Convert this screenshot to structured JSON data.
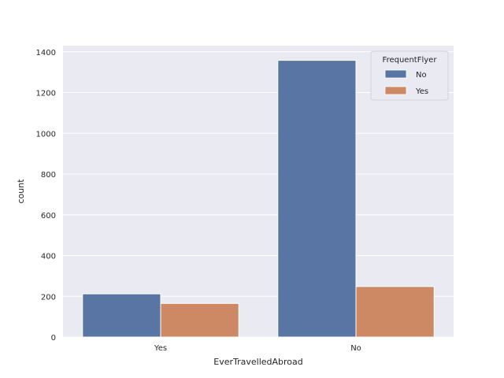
{
  "chart_data": {
    "type": "bar",
    "title": "",
    "xlabel": "EverTravelledAbroad",
    "ylabel": "count",
    "categories": [
      "Yes",
      "No"
    ],
    "ylim": [
      0,
      1430
    ],
    "yticks": [
      0,
      200,
      400,
      600,
      800,
      1000,
      1200,
      1400
    ],
    "grid": true,
    "legend": {
      "title": "FrequentFlyer",
      "placement": "top-right"
    },
    "series": [
      {
        "name": "No",
        "color": "#5875a4",
        "values": [
          212,
          1358
        ]
      },
      {
        "name": "Yes",
        "color": "#cc8963",
        "values": [
          165,
          248
        ]
      }
    ]
  }
}
